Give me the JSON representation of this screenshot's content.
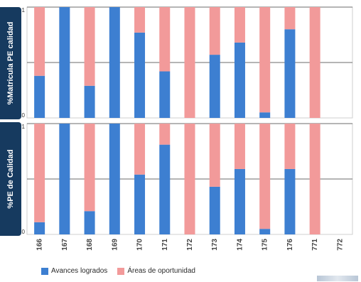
{
  "colors": {
    "avances": "#3d7fd1",
    "areas": "#f29a9a",
    "label_bg": "#163a5f"
  },
  "chart_data": [
    {
      "type": "bar",
      "stacked": true,
      "ylabel": "%Matricula PE calidad",
      "ylim": [
        0,
        1
      ],
      "yticks": [
        "0",
        "1"
      ],
      "categories": [
        "166",
        "167",
        "168",
        "169",
        "170",
        "171",
        "172",
        "173",
        "174",
        "175",
        "176",
        "771",
        "772"
      ],
      "series": [
        {
          "name": "Avances logrados",
          "values": [
            0.38,
            1.0,
            0.29,
            1.0,
            0.77,
            0.42,
            0.0,
            0.57,
            0.68,
            0.05,
            0.8,
            0.0,
            null
          ]
        },
        {
          "name": "Áreas de oportunidad",
          "values": [
            0.62,
            0.0,
            0.71,
            0.0,
            0.23,
            0.58,
            1.0,
            0.43,
            0.32,
            0.95,
            0.2,
            1.0,
            null
          ]
        }
      ]
    },
    {
      "type": "bar",
      "stacked": true,
      "ylabel": "%PE de Calidad",
      "ylim": [
        0,
        1
      ],
      "yticks": [
        "0",
        "1"
      ],
      "categories": [
        "166",
        "167",
        "168",
        "169",
        "170",
        "171",
        "172",
        "173",
        "174",
        "175",
        "176",
        "771",
        "772"
      ],
      "series": [
        {
          "name": "Avances logrados",
          "values": [
            0.11,
            1.0,
            0.21,
            1.0,
            0.54,
            0.81,
            0.0,
            0.43,
            0.59,
            0.05,
            0.59,
            0.0,
            null
          ]
        },
        {
          "name": "Áreas de oportunidad",
          "values": [
            0.89,
            0.0,
            0.79,
            0.0,
            0.46,
            0.19,
            1.0,
            0.57,
            0.41,
            0.95,
            0.41,
            1.0,
            null
          ]
        }
      ]
    }
  ],
  "legend": {
    "avances_label": "Avances logrados",
    "areas_label": "Áreas de oportunidad"
  }
}
